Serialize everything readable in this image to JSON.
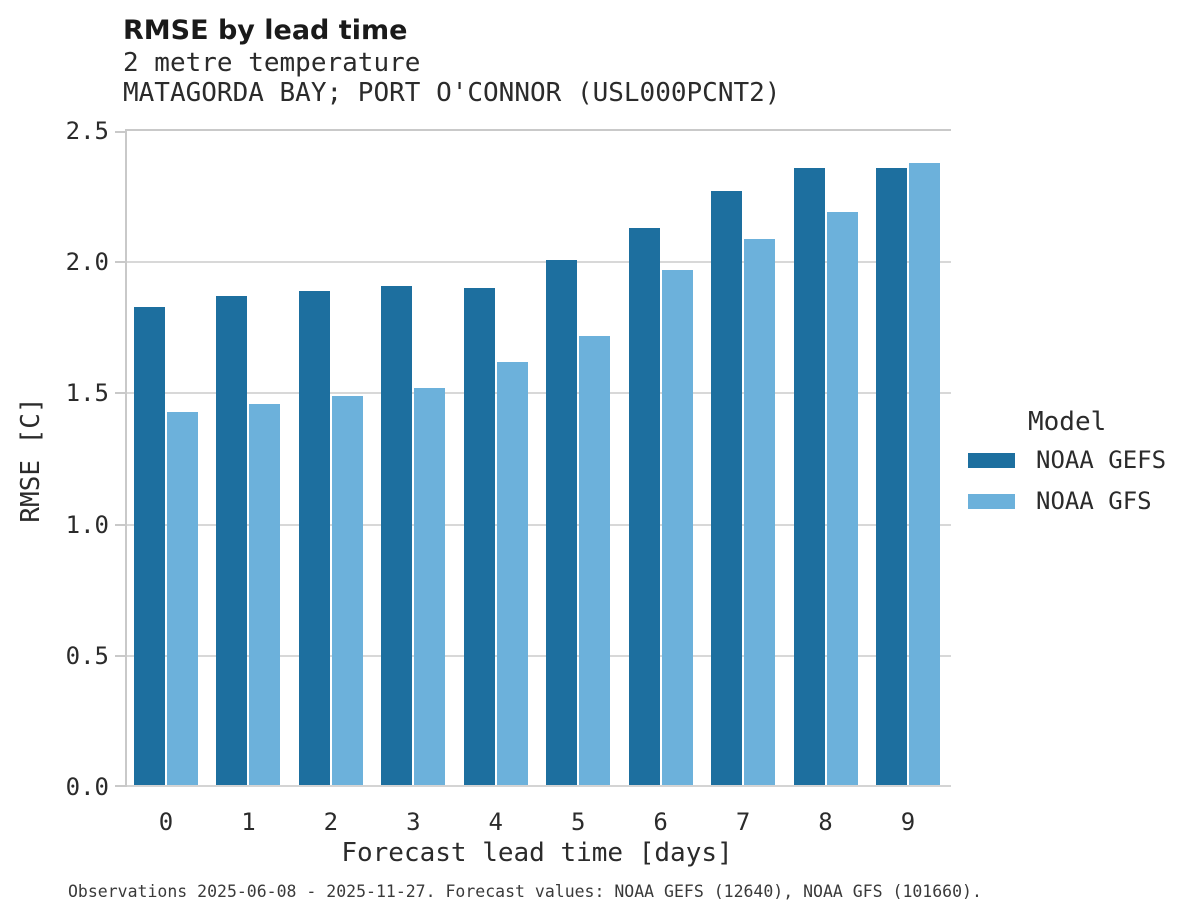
{
  "header": {
    "title": "RMSE by lead time",
    "subtitle": "2 metre temperature",
    "station": "MATAGORDA BAY; PORT O'CONNOR (USL000PCNT2)"
  },
  "legend": {
    "title": "Model"
  },
  "footer": {
    "text": "Observations 2025-06-08 - 2025-11-27. Forecast values: NOAA GEFS (12640), NOAA GFS (101660)."
  },
  "colors": {
    "gefs_bar": "#1d6f9f",
    "gfs_bar": "#6cb1db",
    "gridline": "#d8d8d8",
    "axis_spine": "#c9c9c9"
  },
  "chart_data": {
    "type": "bar",
    "title": "RMSE by lead time",
    "subtitle": "2 metre temperature",
    "station": "MATAGORDA BAY; PORT O'CONNOR (USL000PCNT2)",
    "categories": [
      "0",
      "1",
      "2",
      "3",
      "4",
      "5",
      "6",
      "7",
      "8",
      "9"
    ],
    "series": [
      {
        "name": "NOAA GEFS",
        "color": "#1d6f9f",
        "values": [
          1.83,
          1.87,
          1.89,
          1.91,
          1.9,
          2.01,
          2.13,
          2.27,
          2.36,
          2.36
        ]
      },
      {
        "name": "NOAA GFS",
        "color": "#6cb1db",
        "values": [
          1.43,
          1.46,
          1.49,
          1.52,
          1.62,
          1.72,
          1.97,
          2.09,
          2.19,
          2.38
        ]
      }
    ],
    "xlabel": "Forecast lead time [days]",
    "ylabel": "RMSE [C]",
    "ylim": [
      0,
      2.5
    ],
    "yticks": [
      0.0,
      0.5,
      1.0,
      1.5,
      2.0,
      2.5
    ],
    "grid": "horizontal",
    "legend_title": "Model",
    "legend_position": "right"
  }
}
